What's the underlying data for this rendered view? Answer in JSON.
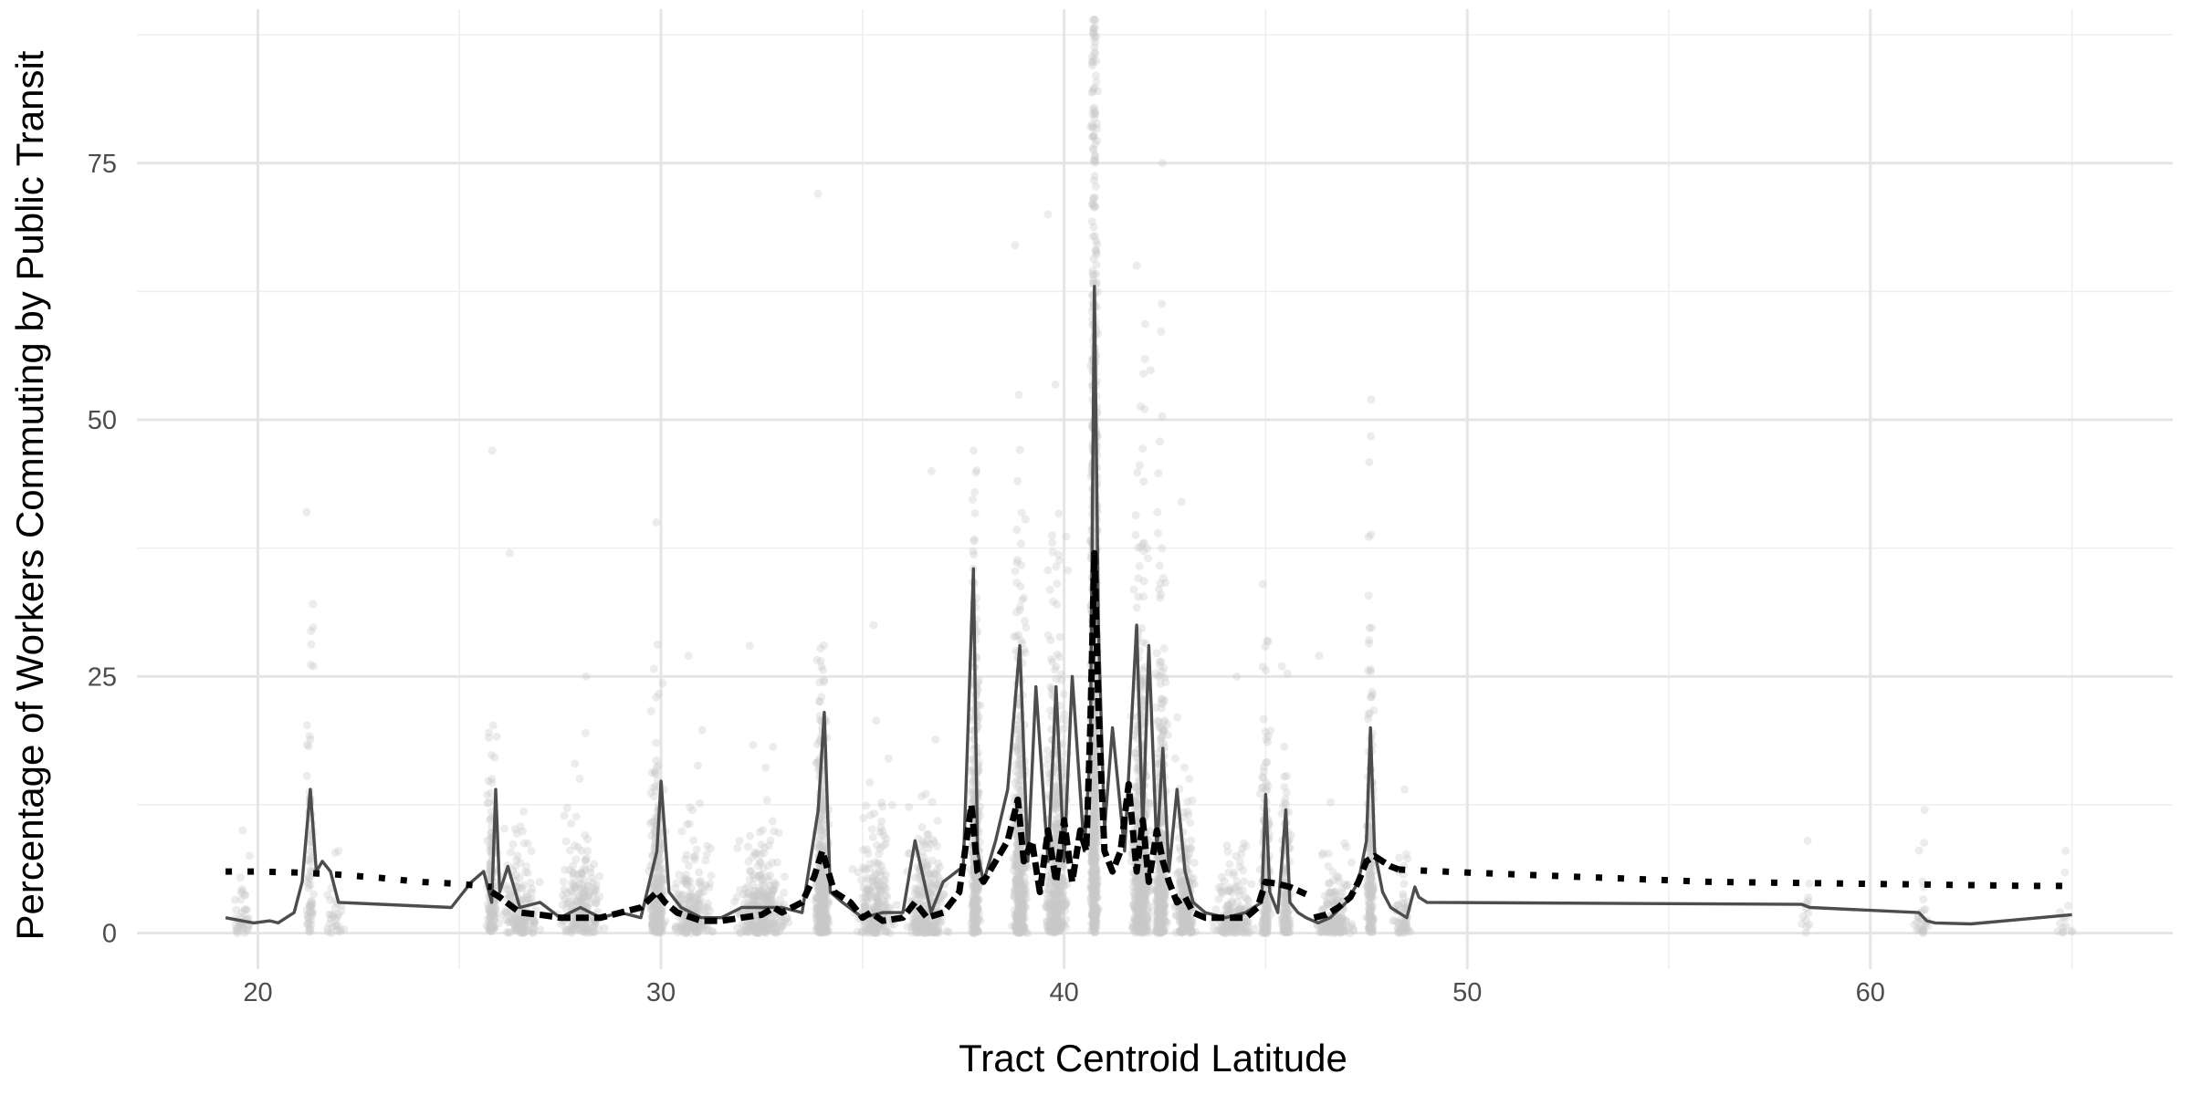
{
  "chart_data": {
    "type": "scatter",
    "xlabel": "Tract Centroid Latitude",
    "ylabel": "Percentage of Workers Commuting by Public Transit",
    "xlim": [
      17,
      67.5
    ],
    "ylim": [
      -3.5,
      90
    ],
    "x_ticks": [
      20,
      30,
      40,
      50,
      60
    ],
    "y_ticks": [
      0,
      25,
      50,
      75
    ],
    "grid": true,
    "legend": "none",
    "colors": {
      "points": "#c8c8c8",
      "tract_line": "#4d4d4d",
      "smooth_line": "#000000",
      "grid": "#e5e5e5"
    },
    "point_clusters": [
      {
        "x": 19.6,
        "spread": 0.35,
        "mean": 2,
        "max": 10,
        "count": 40
      },
      {
        "x": 21.3,
        "spread": 0.12,
        "mean": 8,
        "max": 41,
        "count": 80
      },
      {
        "x": 21.9,
        "spread": 0.3,
        "mean": 2,
        "max": 8,
        "count": 30
      },
      {
        "x": 25.8,
        "spread": 0.15,
        "mean": 6,
        "max": 47,
        "count": 140
      },
      {
        "x": 26.5,
        "spread": 0.6,
        "mean": 3,
        "max": 37,
        "count": 160
      },
      {
        "x": 28.0,
        "spread": 0.7,
        "mean": 3,
        "max": 25,
        "count": 200
      },
      {
        "x": 29.9,
        "spread": 0.25,
        "mean": 5,
        "max": 40,
        "count": 260
      },
      {
        "x": 30.8,
        "spread": 0.6,
        "mean": 3,
        "max": 27,
        "count": 200
      },
      {
        "x": 32.5,
        "spread": 0.8,
        "mean": 3,
        "max": 28,
        "count": 280
      },
      {
        "x": 34.0,
        "spread": 0.2,
        "mean": 6,
        "max": 72,
        "count": 420
      },
      {
        "x": 35.3,
        "spread": 0.6,
        "mean": 3,
        "max": 30,
        "count": 240
      },
      {
        "x": 36.6,
        "spread": 0.6,
        "mean": 3,
        "max": 45,
        "count": 260
      },
      {
        "x": 37.8,
        "spread": 0.15,
        "mean": 12,
        "max": 47,
        "count": 340
      },
      {
        "x": 38.9,
        "spread": 0.22,
        "mean": 10,
        "max": 67,
        "count": 420
      },
      {
        "x": 39.8,
        "spread": 0.35,
        "mean": 8,
        "max": 70,
        "count": 440
      },
      {
        "x": 40.75,
        "spread": 0.12,
        "mean": 32,
        "max": 89,
        "count": 900
      },
      {
        "x": 41.9,
        "spread": 0.3,
        "mean": 10,
        "max": 65,
        "count": 520
      },
      {
        "x": 42.4,
        "spread": 0.2,
        "mean": 10,
        "max": 75,
        "count": 400
      },
      {
        "x": 43.0,
        "spread": 0.3,
        "mean": 4,
        "max": 42,
        "count": 240
      },
      {
        "x": 44.2,
        "spread": 0.6,
        "mean": 2,
        "max": 25,
        "count": 180
      },
      {
        "x": 45.0,
        "spread": 0.15,
        "mean": 6,
        "max": 34,
        "count": 180
      },
      {
        "x": 45.5,
        "spread": 0.15,
        "mean": 5,
        "max": 26,
        "count": 140
      },
      {
        "x": 46.7,
        "spread": 0.6,
        "mean": 2,
        "max": 27,
        "count": 160
      },
      {
        "x": 47.6,
        "spread": 0.12,
        "mean": 9,
        "max": 52,
        "count": 200
      },
      {
        "x": 48.4,
        "spread": 0.3,
        "mean": 2,
        "max": 14,
        "count": 60
      },
      {
        "x": 58.4,
        "spread": 0.15,
        "mean": 2,
        "max": 9,
        "count": 14
      },
      {
        "x": 61.3,
        "spread": 0.25,
        "mean": 2,
        "max": 12,
        "count": 30
      },
      {
        "x": 64.8,
        "spread": 0.3,
        "mean": 2,
        "max": 8,
        "count": 14
      }
    ],
    "series": [
      {
        "style": "solid",
        "x": [
          19.2,
          19.6,
          19.9,
          20.3,
          20.5,
          20.9,
          21.1,
          21.3,
          21.45,
          21.6,
          21.8,
          22.0,
          24.8,
          25.3,
          25.6,
          25.8,
          25.9,
          26.0,
          26.2,
          26.5,
          27.0,
          27.5,
          28.0,
          28.5,
          29.0,
          29.5,
          29.9,
          30.0,
          30.2,
          30.5,
          31.0,
          31.5,
          32.0,
          32.5,
          33.0,
          33.5,
          33.9,
          34.05,
          34.2,
          34.5,
          35.0,
          35.5,
          36.0,
          36.3,
          36.7,
          37.0,
          37.5,
          37.75,
          37.85,
          38.0,
          38.3,
          38.6,
          38.9,
          39.1,
          39.3,
          39.6,
          39.8,
          40.0,
          40.2,
          40.5,
          40.65,
          40.75,
          40.85,
          41.0,
          41.2,
          41.5,
          41.8,
          41.95,
          42.1,
          42.3,
          42.45,
          42.6,
          42.8,
          43.0,
          43.2,
          43.5,
          44.0,
          44.5,
          44.9,
          45.0,
          45.1,
          45.3,
          45.5,
          45.6,
          45.8,
          46.0,
          46.3,
          46.6,
          47.0,
          47.3,
          47.5,
          47.6,
          47.7,
          47.9,
          48.1,
          48.5,
          48.7,
          48.8,
          49.0,
          58.3,
          58.5,
          61.2,
          61.4,
          61.6,
          62.5,
          65.0
        ],
        "y": [
          1.5,
          1.2,
          1.0,
          1.2,
          1.0,
          2.0,
          5.0,
          14.0,
          6.0,
          7.0,
          6.0,
          3.0,
          2.5,
          5.0,
          6.0,
          3.0,
          14.0,
          4.0,
          6.5,
          2.5,
          3.0,
          1.5,
          2.5,
          1.5,
          2.0,
          1.5,
          8.0,
          14.8,
          4.0,
          2.5,
          1.5,
          1.5,
          2.5,
          2.5,
          2.5,
          2.0,
          12.0,
          21.5,
          4.0,
          3.0,
          1.5,
          2.0,
          2.0,
          9.0,
          2.0,
          5.0,
          6.5,
          35.5,
          8.0,
          5.0,
          9.0,
          14.0,
          28.0,
          7.0,
          24.0,
          7.0,
          24.0,
          7.0,
          25.0,
          8.0,
          18.0,
          63.0,
          30.0,
          10.0,
          20.0,
          8.0,
          30.0,
          10.0,
          28.0,
          8.0,
          18.0,
          6.0,
          14.0,
          6.0,
          3.0,
          2.0,
          1.5,
          2.0,
          3.0,
          13.5,
          4.0,
          2.0,
          12.0,
          3.0,
          2.0,
          1.5,
          1.0,
          1.5,
          3.0,
          5.0,
          9.0,
          20.0,
          8.0,
          4.0,
          2.5,
          1.5,
          4.5,
          3.5,
          3.0,
          2.8,
          2.5,
          2.0,
          1.2,
          1.0,
          0.9,
          1.8
        ]
      },
      {
        "style": "dotted",
        "x": [
          19.2,
          20.0,
          21.0,
          22.0,
          23.0,
          24.0,
          25.0,
          25.8
        ],
        "y": [
          6.0,
          6.0,
          5.9,
          5.7,
          5.4,
          5.0,
          4.8,
          4.5
        ]
      },
      {
        "style": "dashed",
        "x": [
          25.8,
          26.0,
          26.5,
          27.0,
          27.5,
          28.0,
          28.5,
          29.0,
          29.5,
          29.9,
          30.1,
          30.4,
          31.0,
          31.5,
          32.0,
          32.5,
          32.8,
          33.0,
          33.5,
          33.8,
          34.0,
          34.3,
          34.7,
          35.0,
          35.2,
          35.5,
          36.0,
          36.3,
          36.6,
          37.0,
          37.4,
          37.7,
          37.85,
          38.0,
          38.3,
          38.6,
          38.85,
          39.0,
          39.2,
          39.4,
          39.6,
          39.8,
          40.0,
          40.2,
          40.4,
          40.55,
          40.65,
          40.75,
          40.85,
          41.0,
          41.2,
          41.4,
          41.6,
          41.8,
          41.95,
          42.1,
          42.3,
          42.45,
          42.6,
          42.8,
          43.0,
          43.2,
          43.5,
          44.0,
          44.5,
          44.8,
          45.0,
          45.3,
          45.6,
          46.0
        ],
        "y": [
          4.0,
          3.5,
          2.0,
          1.8,
          1.5,
          1.5,
          1.5,
          2.0,
          2.5,
          4.0,
          3.0,
          2.0,
          1.2,
          1.2,
          1.5,
          1.8,
          2.5,
          2.0,
          3.0,
          5.5,
          8.0,
          4.0,
          3.0,
          1.5,
          2.0,
          1.2,
          1.5,
          3.0,
          1.5,
          2.0,
          4.0,
          12.5,
          6.0,
          5.0,
          7.0,
          9.0,
          13.0,
          7.0,
          9.0,
          4.0,
          10.0,
          5.0,
          11.0,
          5.0,
          10.0,
          8.0,
          20.0,
          37.0,
          22.0,
          8.0,
          6.0,
          8.0,
          14.5,
          6.0,
          11.0,
          5.0,
          10.0,
          7.0,
          5.0,
          3.0,
          3.5,
          2.0,
          1.5,
          1.5,
          1.5,
          2.5,
          5.0,
          4.8,
          4.5,
          3.8
        ]
      },
      {
        "style": "dashed",
        "x": [
          46.2,
          46.5,
          46.8,
          47.1,
          47.3,
          47.5,
          47.7,
          47.9,
          48.1,
          48.3
        ],
        "y": [
          1.5,
          1.8,
          2.5,
          3.5,
          5.0,
          7.0,
          7.5,
          7.0,
          6.5,
          6.2
        ]
      },
      {
        "style": "dotted",
        "x": [
          48.3,
          50.0,
          52.0,
          54.0,
          56.0,
          58.0,
          60.0,
          62.0,
          64.0,
          65.0
        ],
        "y": [
          6.2,
          5.9,
          5.6,
          5.3,
          5.0,
          4.9,
          4.8,
          4.7,
          4.6,
          4.6
        ]
      }
    ]
  }
}
